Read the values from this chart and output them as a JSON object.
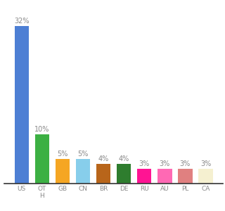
{
  "categories": [
    "US",
    "OT\nH",
    "GB",
    "CN",
    "BR",
    "DE",
    "RU",
    "AU",
    "PL",
    "CA"
  ],
  "values": [
    32,
    10,
    5,
    5,
    4,
    4,
    3,
    3,
    3,
    3
  ],
  "bar_colors": [
    "#4d7fd4",
    "#3cb043",
    "#f5a623",
    "#87ceeb",
    "#b8651a",
    "#2e7d2e",
    "#ff1493",
    "#ff69b4",
    "#e08080",
    "#f5f0d0"
  ],
  "ylim": [
    0,
    36
  ],
  "background_color": "#ffffff",
  "label_color": "#888888",
  "label_fontsize": 7,
  "tick_fontsize": 6.5
}
